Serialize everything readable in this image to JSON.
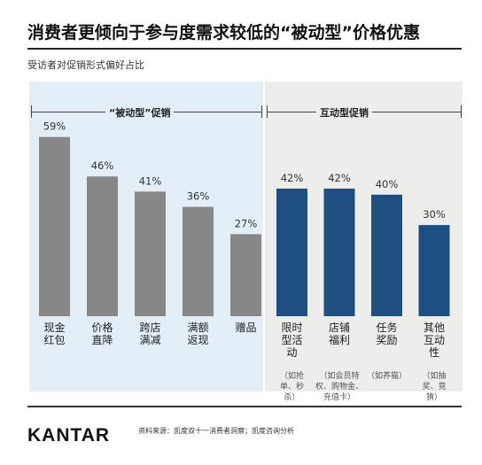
{
  "title": "消费者更倾向于参与度需求较低的“被动型”价格优惠",
  "subtitle": "受访者对促销形式偏好占比",
  "colors": {
    "passive_bar": "#878787",
    "interactive_bar": "#1f4e82",
    "passive_bg": "#e3eef7",
    "interactive_bg": "#ededec"
  },
  "chart_data": {
    "type": "bar",
    "ylim": [
      0,
      70
    ],
    "groups": [
      {
        "name": "“被动型”促销",
        "categories": [
          "现金红包",
          "价格直降",
          "跨店满减",
          "满额返现",
          "赠品"
        ],
        "values": [
          59,
          46,
          41,
          36,
          27
        ],
        "data_labels": [
          "59%",
          "46%",
          "41%",
          "36%",
          "27%"
        ],
        "notes": [
          "",
          "",
          "",
          "",
          ""
        ]
      },
      {
        "name": "互动型促销",
        "categories": [
          "限时型活动",
          "店铺福利",
          "任务奖励",
          "其他互动性"
        ],
        "values": [
          42,
          42,
          40,
          30
        ],
        "data_labels": [
          "42%",
          "42%",
          "40%",
          "30%"
        ],
        "notes": [
          "（如抢单、秒杀）",
          "（如会员特权、购物金、充值卡）",
          "（如养猫）",
          "（如抽奖、竞猜）"
        ]
      }
    ]
  },
  "footer": {
    "logo": "KANTAR",
    "source": "资料来源：凯度双十一消费者洞察；凯度咨询分析"
  }
}
